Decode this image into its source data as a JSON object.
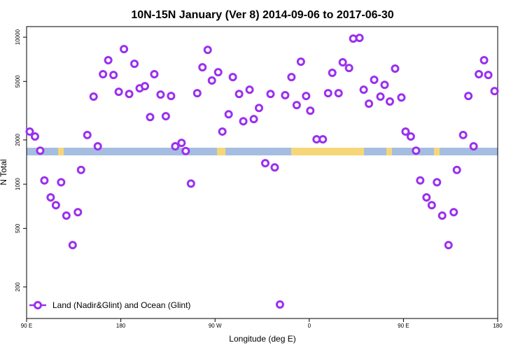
{
  "chart_data": {
    "type": "scatter",
    "title": "10N-15N January (Ver 8)   2014-09-06 to 2017-06-30",
    "x_label": "Longitude (deg E)",
    "y_label": "N Total",
    "ylog": true,
    "legend_position": "bottom-left",
    "xlim": [
      90,
      540
    ],
    "xticks": [
      {
        "value": 90,
        "label": "90 E"
      },
      180,
      {
        "value": 270,
        "label": "90 W"
      },
      {
        "value": 360,
        "label": "0"
      },
      {
        "value": 450,
        "label": "90 E"
      },
      {
        "value": 540,
        "label": "180"
      }
    ],
    "ylim": [
      122,
      11800
    ],
    "yticks": [
      200,
      500,
      1000,
      2000,
      5000,
      10000
    ],
    "series": [
      {
        "name": "Land (Nadir&Glint) and Ocean (Glint)",
        "color": "#9b30ee",
        "x": [
          93,
          98,
          103,
          107,
          113,
          118,
          123,
          128,
          134,
          139,
          142,
          148,
          154,
          158,
          163,
          168,
          173,
          178,
          183,
          188,
          193,
          198,
          203,
          208,
          212,
          218,
          223,
          228,
          232,
          238,
          242,
          247,
          253,
          258,
          263,
          267,
          273,
          277,
          283,
          287,
          293,
          297,
          303,
          307,
          312,
          318,
          323,
          327,
          332,
          337,
          343,
          348,
          352,
          357,
          361,
          367,
          373,
          378,
          382,
          388,
          392,
          398,
          402,
          408,
          412,
          417,
          422,
          428,
          432,
          437,
          442,
          448,
          452,
          457,
          462,
          466,
          472,
          477,
          482,
          487,
          493,
          498,
          501,
          507,
          512,
          517,
          522,
          527,
          531,
          537
        ],
        "values": [
          2280,
          2110,
          1690,
          1060,
          813,
          720,
          1030,
          611,
          385,
          645,
          1250,
          2160,
          3940,
          1810,
          5600,
          6970,
          5530,
          4250,
          8300,
          4110,
          6590,
          4490,
          4640,
          2860,
          5600,
          4070,
          2900,
          3980,
          1810,
          1910,
          1680,
          1010,
          4160,
          6240,
          8200,
          5070,
          5780,
          2280,
          2990,
          5350,
          4110,
          2680,
          4390,
          2770,
          3300,
          1390,
          4110,
          1300,
          152,
          4030,
          5350,
          3450,
          6810,
          3980,
          3160,
          2020,
          2020,
          4160,
          5720,
          4160,
          6750,
          6170,
          9780,
          9890,
          4390,
          3530,
          5130,
          3940,
          4740,
          3650,
          6110,
          3890,
          2280,
          2110,
          1690,
          1060,
          813,
          720,
          1030,
          611,
          385,
          645,
          1250,
          2160,
          3980,
          1810,
          5600,
          6970,
          5530,
          4300
        ]
      }
    ]
  }
}
